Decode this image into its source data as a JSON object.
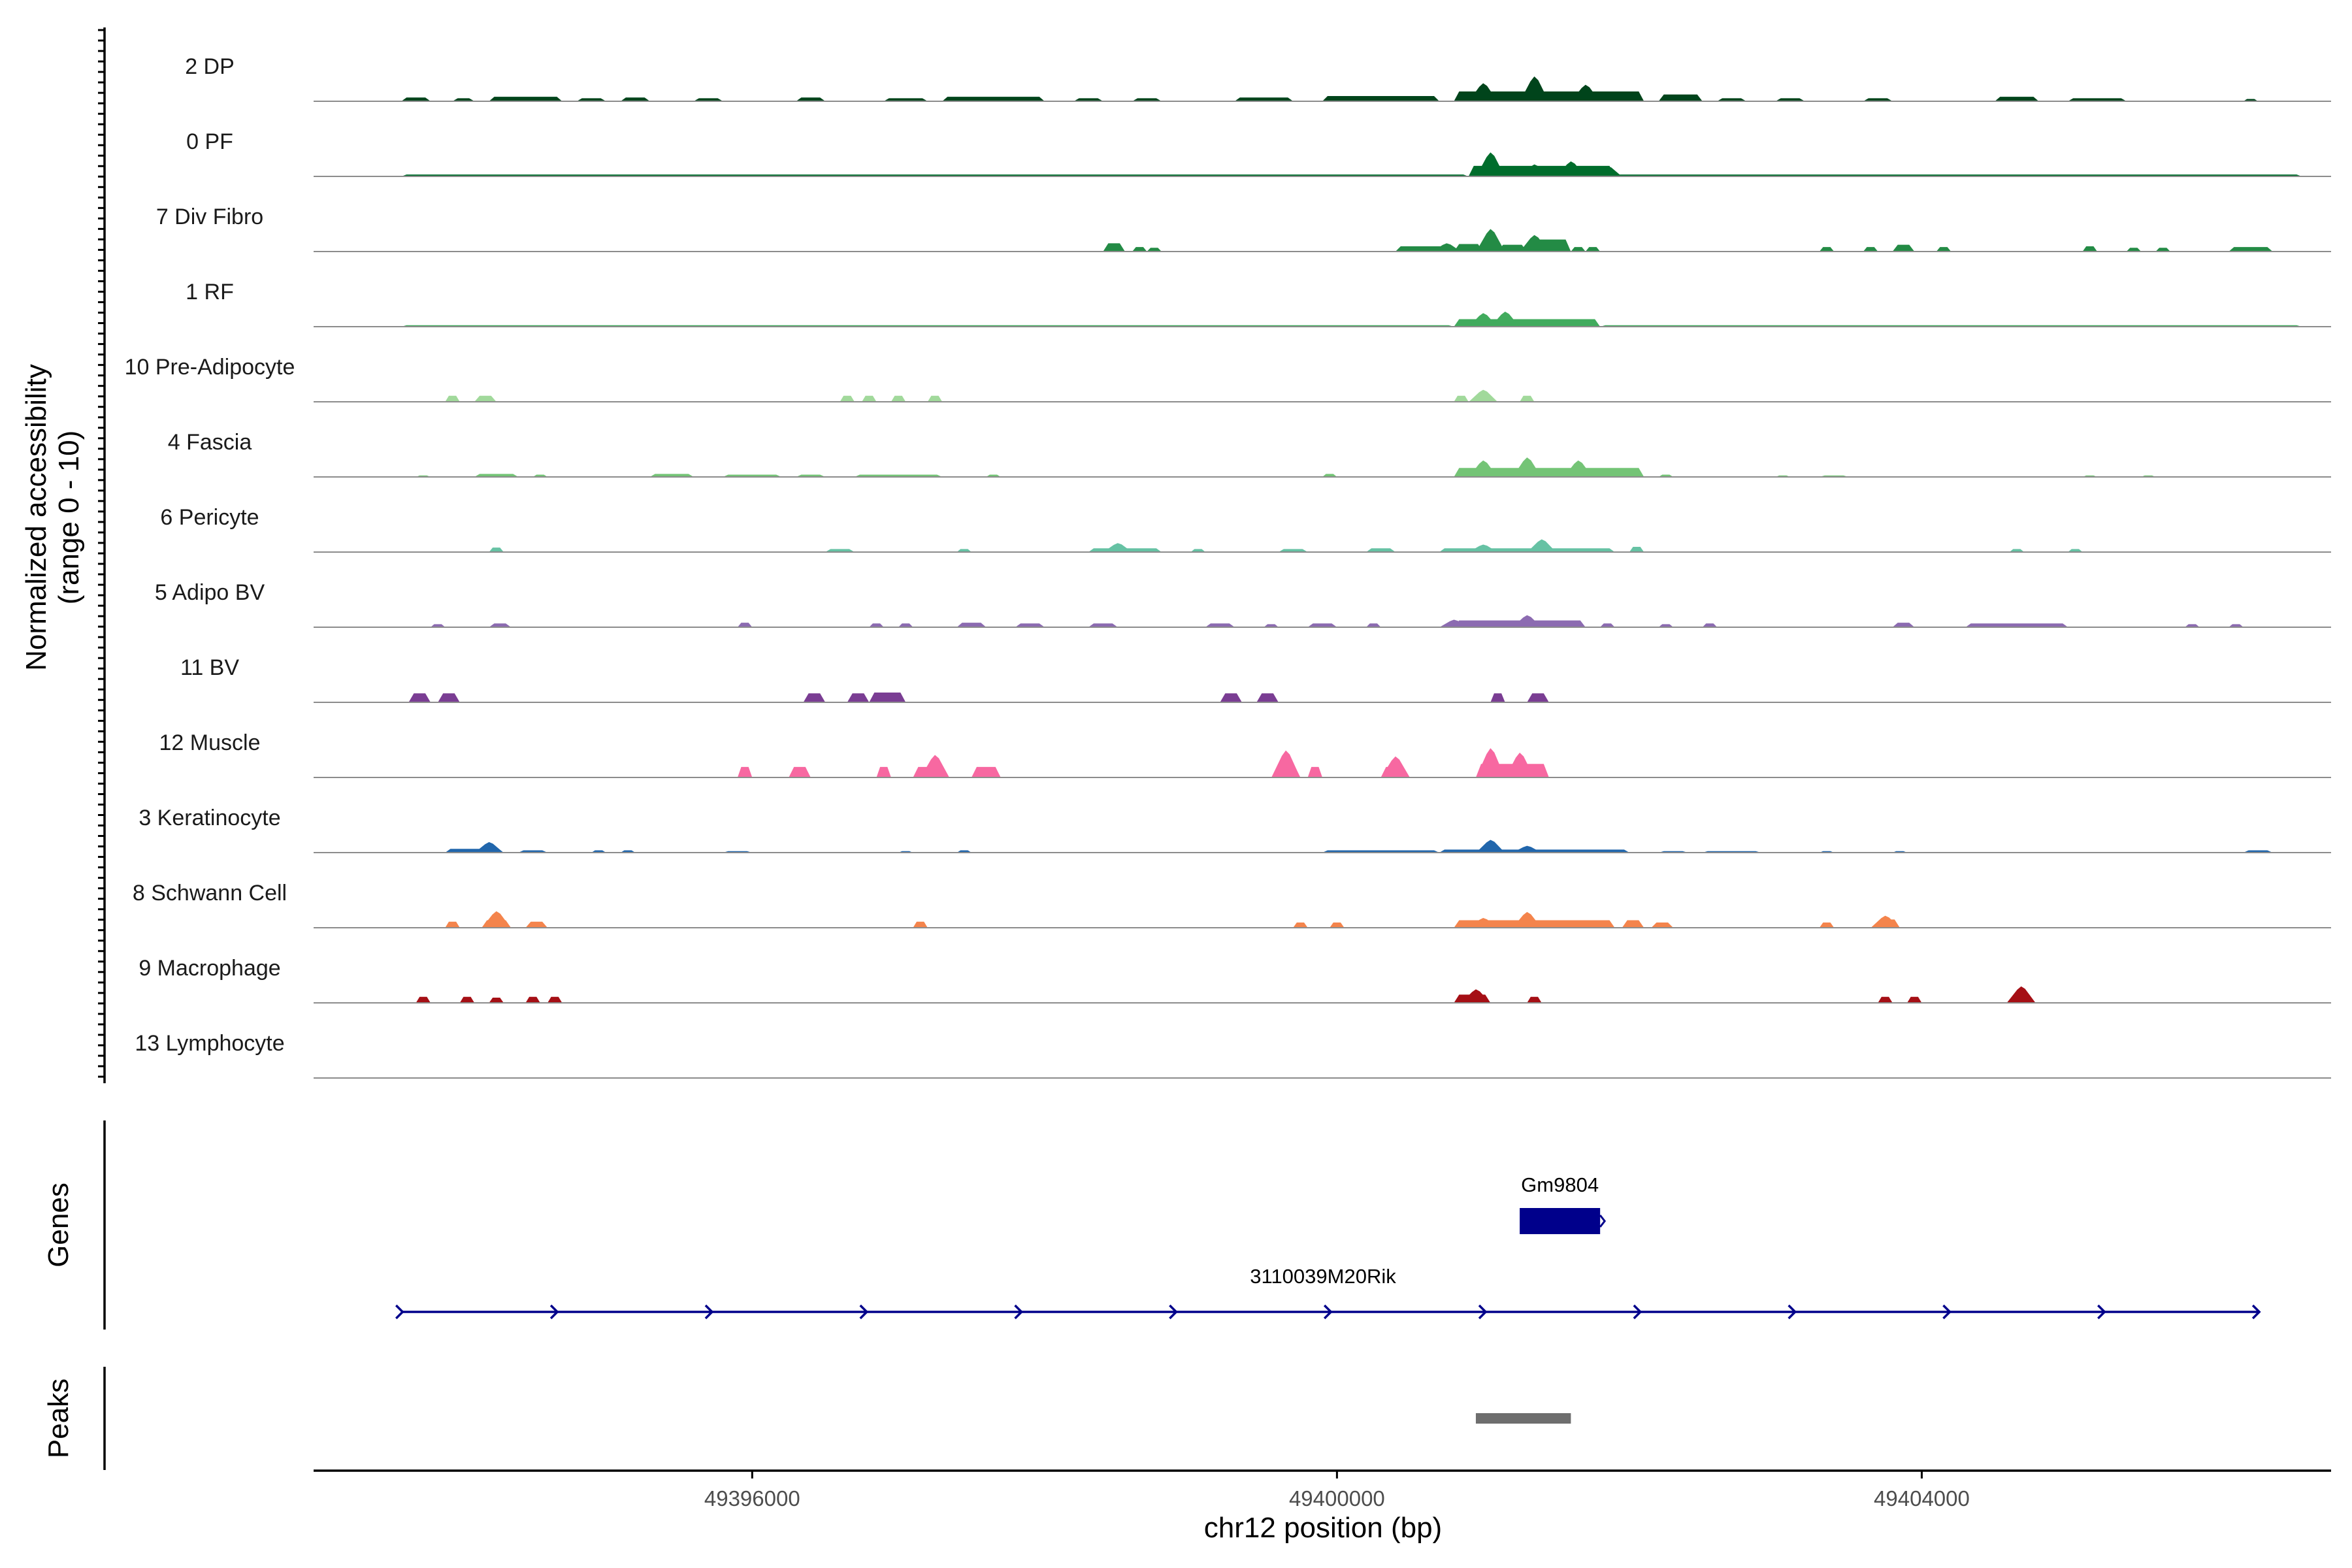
{
  "chart_data": {
    "type": "area",
    "title": "",
    "ylabel": [
      "Normalized accessibility",
      "(range 0 - 10)"
    ],
    "xlabel": "chr12 position (bp)",
    "xlim": [
      49393000,
      49406800
    ],
    "ylim": [
      0,
      10
    ],
    "x_ticks": [
      49396000,
      49400000,
      49404000
    ],
    "x_tick_labels": [
      "49396000",
      "49400000",
      "49404000"
    ],
    "panel_titles": {
      "genes": "Genes",
      "peaks": "Peaks"
    },
    "series": [
      {
        "name": "2 DP",
        "color": "#00441b",
        "signal": [
          [
            49393600,
            49393800,
            0.5
          ],
          [
            49393950,
            49394100,
            0.4
          ],
          [
            49394200,
            49394700,
            0.6
          ],
          [
            49394800,
            49395000,
            0.4
          ],
          [
            49395100,
            49395300,
            0.5
          ],
          [
            49395600,
            49395800,
            0.4
          ],
          [
            49396300,
            49396500,
            0.5
          ],
          [
            49396900,
            49397200,
            0.4
          ],
          [
            49397300,
            49398000,
            0.6
          ],
          [
            49398200,
            49398400,
            0.4
          ],
          [
            49398600,
            49398800,
            0.4
          ],
          [
            49399300,
            49399700,
            0.5
          ],
          [
            49399900,
            49400700,
            0.7
          ],
          [
            49400800,
            49402100,
            1.3
          ],
          [
            49402200,
            49402500,
            0.9
          ],
          [
            49402600,
            49402800,
            0.4
          ],
          [
            49403000,
            49403200,
            0.4
          ],
          [
            49403600,
            49403800,
            0.4
          ],
          [
            49404500,
            49404800,
            0.6
          ],
          [
            49405000,
            49405400,
            0.4
          ],
          [
            49406200,
            49406300,
            0.3
          ]
        ],
        "peaks": [
          [
            49401000,
            2.4
          ],
          [
            49401350,
            3.3
          ],
          [
            49401700,
            2.2
          ]
        ]
      },
      {
        "name": "0 PF",
        "color": "#006d2c",
        "signal": [
          [
            49393600,
            49400900,
            0.25
          ],
          [
            49400900,
            49401900,
            1.4
          ],
          [
            49401900,
            49406600,
            0.25
          ]
        ],
        "peaks": [
          [
            49401050,
            3.2
          ],
          [
            49401350,
            1.6
          ],
          [
            49401600,
            2.0
          ],
          [
            49401850,
            1.4
          ]
        ]
      },
      {
        "name": "7 Div Fibro",
        "color": "#238b45",
        "signal": [
          [
            49398400,
            49398550,
            1.1
          ],
          [
            49398600,
            49398700,
            0.6
          ],
          [
            49398700,
            49398800,
            0.5
          ],
          [
            49400400,
            49400800,
            0.7
          ],
          [
            49400800,
            49401000,
            1.0
          ],
          [
            49401100,
            49401300,
            0.9
          ],
          [
            49401300,
            49401600,
            1.6
          ],
          [
            49401600,
            49401700,
            0.6
          ],
          [
            49401700,
            49401800,
            0.6
          ],
          [
            49403300,
            49403400,
            0.6
          ],
          [
            49403600,
            49403700,
            0.6
          ],
          [
            49403800,
            49403950,
            0.9
          ],
          [
            49404100,
            49404200,
            0.6
          ],
          [
            49405100,
            49405200,
            0.7
          ],
          [
            49405400,
            49405500,
            0.5
          ],
          [
            49405600,
            49405700,
            0.5
          ],
          [
            49406100,
            49406400,
            0.6
          ]
        ],
        "peaks": [
          [
            49401050,
            3.0
          ],
          [
            49401350,
            2.2
          ],
          [
            49400750,
            1.1
          ]
        ]
      },
      {
        "name": "1 RF",
        "color": "#41ab5d",
        "signal": [
          [
            49393600,
            49400800,
            0.2
          ],
          [
            49400800,
            49401800,
            1.0
          ],
          [
            49401800,
            49406600,
            0.2
          ]
        ],
        "peaks": [
          [
            49401000,
            1.8
          ],
          [
            49401150,
            2.0
          ],
          [
            49401500,
            1.0
          ]
        ]
      },
      {
        "name": "10 Pre-Adipocyte",
        "color": "#a1d99b",
        "signal": [
          [
            49393900,
            49394000,
            0.8
          ],
          [
            49394100,
            49394250,
            0.8
          ],
          [
            49396600,
            49396700,
            0.8
          ],
          [
            49396750,
            49396850,
            0.8
          ],
          [
            49396950,
            49397050,
            0.8
          ],
          [
            49397200,
            49397300,
            0.8
          ],
          [
            49400800,
            49400900,
            0.8
          ],
          [
            49400950,
            49401050,
            0.9
          ],
          [
            49401250,
            49401350,
            0.8
          ]
        ],
        "peaks": [
          [
            49401000,
            1.6
          ]
        ]
      },
      {
        "name": "4 Fascia",
        "color": "#74c476",
        "signal": [
          [
            49393700,
            49393800,
            0.2
          ],
          [
            49394100,
            49394400,
            0.4
          ],
          [
            49394500,
            49394600,
            0.3
          ],
          [
            49395300,
            49395600,
            0.4
          ],
          [
            49395800,
            49396200,
            0.3
          ],
          [
            49396300,
            49396500,
            0.3
          ],
          [
            49396700,
            49397300,
            0.3
          ],
          [
            49397600,
            49397700,
            0.3
          ],
          [
            49399900,
            49400000,
            0.4
          ],
          [
            49400800,
            49402100,
            1.2
          ],
          [
            49402200,
            49402300,
            0.3
          ],
          [
            49403000,
            49403100,
            0.2
          ],
          [
            49403300,
            49403500,
            0.2
          ],
          [
            49405100,
            49405200,
            0.2
          ],
          [
            49405500,
            49405600,
            0.2
          ]
        ],
        "peaks": [
          [
            49401000,
            2.2
          ],
          [
            49401300,
            2.6
          ],
          [
            49401650,
            2.2
          ]
        ]
      },
      {
        "name": "6 Pericyte",
        "color": "#66c2a4",
        "signal": [
          [
            49394200,
            49394300,
            0.6
          ],
          [
            49396500,
            49396700,
            0.4
          ],
          [
            49397400,
            49397500,
            0.4
          ],
          [
            49398300,
            49398800,
            0.5
          ],
          [
            49399000,
            49399100,
            0.4
          ],
          [
            49399600,
            49399800,
            0.4
          ],
          [
            49400200,
            49400400,
            0.5
          ],
          [
            49400700,
            49401900,
            0.5
          ],
          [
            49402000,
            49402100,
            0.7
          ],
          [
            49404600,
            49404700,
            0.4
          ],
          [
            49405000,
            49405100,
            0.4
          ]
        ],
        "peaks": [
          [
            49401400,
            1.7
          ],
          [
            49401000,
            1.0
          ],
          [
            49398500,
            1.2
          ]
        ]
      },
      {
        "name": "5 Adipo BV",
        "color": "#8c6bb1",
        "signal": [
          [
            49393800,
            49393900,
            0.4
          ],
          [
            49394200,
            49394350,
            0.5
          ],
          [
            49395900,
            49396000,
            0.6
          ],
          [
            49396800,
            49396900,
            0.5
          ],
          [
            49397000,
            49397100,
            0.5
          ],
          [
            49397400,
            49397600,
            0.6
          ],
          [
            49397800,
            49398000,
            0.5
          ],
          [
            49398300,
            49398500,
            0.5
          ],
          [
            49399100,
            49399300,
            0.5
          ],
          [
            49399500,
            49399600,
            0.4
          ],
          [
            49399800,
            49400000,
            0.5
          ],
          [
            49400200,
            49400300,
            0.5
          ],
          [
            49400800,
            49401700,
            0.9
          ],
          [
            49401800,
            49401900,
            0.5
          ],
          [
            49402200,
            49402300,
            0.4
          ],
          [
            49402500,
            49402600,
            0.5
          ],
          [
            49403800,
            49403950,
            0.6
          ],
          [
            49404300,
            49405000,
            0.5
          ],
          [
            49405800,
            49405900,
            0.4
          ],
          [
            49406100,
            49406200,
            0.4
          ]
        ],
        "peaks": [
          [
            49401300,
            1.6
          ],
          [
            49400800,
            1.0
          ]
        ]
      },
      {
        "name": "11 BV",
        "color": "#7a3d93",
        "signal": [
          [
            49393650,
            49393800,
            1.2
          ],
          [
            49393850,
            49394000,
            1.2
          ],
          [
            49396350,
            49396500,
            1.2
          ],
          [
            49396650,
            49396800,
            1.2
          ],
          [
            49396800,
            49397050,
            1.3
          ],
          [
            49399200,
            49399350,
            1.2
          ],
          [
            49399450,
            49399600,
            1.2
          ],
          [
            49401050,
            49401150,
            1.2
          ],
          [
            49401300,
            49401450,
            1.2
          ]
        ],
        "peaks": []
      },
      {
        "name": "12 Muscle",
        "color": "#f768a1",
        "signal": [
          [
            49395900,
            49396000,
            1.4
          ],
          [
            49396250,
            49396400,
            1.4
          ],
          [
            49396850,
            49396950,
            1.4
          ],
          [
            49397100,
            49397300,
            1.4
          ],
          [
            49397500,
            49397700,
            1.4
          ],
          [
            49399600,
            49399750,
            1.4
          ],
          [
            49399800,
            49399900,
            1.4
          ],
          [
            49400300,
            49400450,
            1.4
          ],
          [
            49400950,
            49401450,
            1.8
          ]
        ],
        "peaks": [
          [
            49399650,
            3.6
          ],
          [
            49400400,
            2.8
          ],
          [
            49397250,
            3.0
          ],
          [
            49401050,
            3.9
          ],
          [
            49401250,
            3.3
          ]
        ]
      },
      {
        "name": "3 Keratinocyte",
        "color": "#2166ac",
        "signal": [
          [
            49393900,
            49394300,
            0.5
          ],
          [
            49394400,
            49394600,
            0.3
          ],
          [
            49394900,
            49395000,
            0.3
          ],
          [
            49395100,
            49395200,
            0.3
          ],
          [
            49395800,
            49396000,
            0.2
          ],
          [
            49397000,
            49397100,
            0.2
          ],
          [
            49397400,
            49397500,
            0.3
          ],
          [
            49399900,
            49400700,
            0.3
          ],
          [
            49400700,
            49402000,
            0.4
          ],
          [
            49402200,
            49402400,
            0.2
          ],
          [
            49402500,
            49402900,
            0.2
          ],
          [
            49403300,
            49403400,
            0.2
          ],
          [
            49403800,
            49403900,
            0.2
          ],
          [
            49406200,
            49406400,
            0.3
          ]
        ],
        "peaks": [
          [
            49394200,
            1.4
          ],
          [
            49401050,
            1.7
          ],
          [
            49401300,
            0.9
          ]
        ]
      },
      {
        "name": "8 Schwann Cell",
        "color": "#f4844c",
        "signal": [
          [
            49393900,
            49394000,
            0.8
          ],
          [
            49394150,
            49394350,
            1.0
          ],
          [
            49394450,
            49394600,
            0.8
          ],
          [
            49397100,
            49397200,
            0.8
          ],
          [
            49399700,
            49399800,
            0.7
          ],
          [
            49399950,
            49400050,
            0.7
          ],
          [
            49400800,
            49401900,
            1.0
          ],
          [
            49401950,
            49402100,
            1.0
          ],
          [
            49402150,
            49402300,
            0.7
          ],
          [
            49403300,
            49403400,
            0.7
          ],
          [
            49403700,
            49403850,
            1.1
          ]
        ],
        "peaks": [
          [
            49394250,
            2.2
          ],
          [
            49401300,
            2.1
          ],
          [
            49401000,
            1.3
          ],
          [
            49403750,
            1.6
          ]
        ]
      },
      {
        "name": "9 Macrophage",
        "color": "#a50f15",
        "signal": [
          [
            49393700,
            49393800,
            0.8
          ],
          [
            49394000,
            49394100,
            0.8
          ],
          [
            49394200,
            49394300,
            0.7
          ],
          [
            49394450,
            49394550,
            0.8
          ],
          [
            49394600,
            49394700,
            0.8
          ],
          [
            49400800,
            49401050,
            1.1
          ],
          [
            49401300,
            49401400,
            0.8
          ],
          [
            49403700,
            49403800,
            0.8
          ],
          [
            49403900,
            49404000,
            0.8
          ],
          [
            49404600,
            49404750,
            1.2
          ]
        ],
        "peaks": [
          [
            49400950,
            1.8
          ],
          [
            49404680,
            2.2
          ]
        ]
      },
      {
        "name": "13 Lymphocyte",
        "color": "#6b3f7a",
        "signal": [],
        "peaks": []
      }
    ],
    "genes": [
      {
        "name": "Gm9804",
        "start": 49401250,
        "end": 49401800,
        "strand": "+",
        "color": "#00008b"
      },
      {
        "name": "3110039M20Rik",
        "start": 49393600,
        "end": 49406300,
        "strand": "+",
        "color": "#00008b"
      }
    ],
    "peaks": [
      {
        "start": 49400950,
        "end": 49401600,
        "color": "#6e6e6e"
      }
    ]
  }
}
